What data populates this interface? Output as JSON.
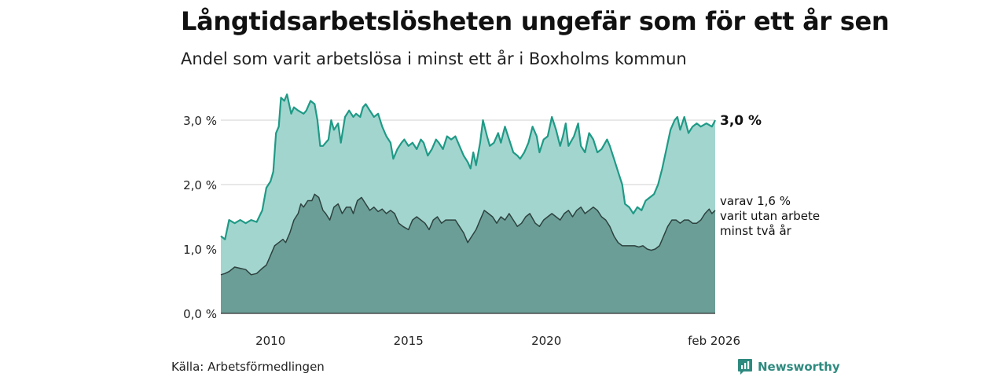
{
  "header": {
    "title": "Långtidsarbetslösheten ungefär som för ett år sen",
    "subtitle": "Andel som varit arbetslösa i minst ett år i Boxholms kommun"
  },
  "footer": {
    "source": "Källa: Arbetsförmedlingen",
    "brand": "Newsworthy"
  },
  "colors": {
    "total_fill": "#a3d5cf",
    "total_line": "#1f9a86",
    "long_fill": "#6b9e96",
    "long_line": "#2d423f",
    "grid": "#d2d2d2"
  },
  "chart_data": {
    "type": "area",
    "title": "Långtidsarbetslösheten ungefär som för ett år sen",
    "subtitle": "Andel som varit arbetslösa i minst ett år i Boxholms kommun",
    "xlabel": "",
    "ylabel": "",
    "xlim": [
      2008.2,
      2026.12
    ],
    "ylim": [
      0,
      3.5
    ],
    "grid": true,
    "x_tick_values": [
      2010,
      2015,
      2020,
      2026.08
    ],
    "x_tick_labels": [
      "2010",
      "2015",
      "2020",
      "feb 2026"
    ],
    "y_tick_values": [
      0,
      1,
      2,
      3
    ],
    "y_tick_labels": [
      "0,0 %",
      "1,0 %",
      "2,0 %",
      "3,0 %"
    ],
    "series": [
      {
        "name": "Andel arbetslösa minst ett år",
        "end_label": "3,0 %",
        "points": [
          [
            2008.2,
            1.2
          ],
          [
            2008.35,
            1.15
          ],
          [
            2008.5,
            1.45
          ],
          [
            2008.7,
            1.4
          ],
          [
            2008.9,
            1.45
          ],
          [
            2009.1,
            1.4
          ],
          [
            2009.3,
            1.45
          ],
          [
            2009.5,
            1.42
          ],
          [
            2009.7,
            1.6
          ],
          [
            2009.85,
            1.95
          ],
          [
            2010.0,
            2.05
          ],
          [
            2010.1,
            2.2
          ],
          [
            2010.2,
            2.8
          ],
          [
            2010.3,
            2.9
          ],
          [
            2010.38,
            3.35
          ],
          [
            2010.5,
            3.3
          ],
          [
            2010.6,
            3.4
          ],
          [
            2010.75,
            3.1
          ],
          [
            2010.85,
            3.2
          ],
          [
            2011.0,
            3.15
          ],
          [
            2011.2,
            3.1
          ],
          [
            2011.3,
            3.15
          ],
          [
            2011.45,
            3.3
          ],
          [
            2011.6,
            3.25
          ],
          [
            2011.7,
            3.0
          ],
          [
            2011.8,
            2.6
          ],
          [
            2011.9,
            2.6
          ],
          [
            2012.1,
            2.7
          ],
          [
            2012.2,
            3.0
          ],
          [
            2012.3,
            2.85
          ],
          [
            2012.45,
            2.95
          ],
          [
            2012.55,
            2.65
          ],
          [
            2012.7,
            3.05
          ],
          [
            2012.85,
            3.15
          ],
          [
            2013.0,
            3.05
          ],
          [
            2013.1,
            3.1
          ],
          [
            2013.25,
            3.05
          ],
          [
            2013.35,
            3.2
          ],
          [
            2013.45,
            3.25
          ],
          [
            2013.6,
            3.15
          ],
          [
            2013.75,
            3.05
          ],
          [
            2013.9,
            3.1
          ],
          [
            2014.05,
            2.9
          ],
          [
            2014.2,
            2.75
          ],
          [
            2014.35,
            2.65
          ],
          [
            2014.45,
            2.4
          ],
          [
            2014.6,
            2.55
          ],
          [
            2014.75,
            2.65
          ],
          [
            2014.85,
            2.7
          ],
          [
            2015.0,
            2.6
          ],
          [
            2015.15,
            2.65
          ],
          [
            2015.3,
            2.55
          ],
          [
            2015.45,
            2.7
          ],
          [
            2015.55,
            2.65
          ],
          [
            2015.7,
            2.45
          ],
          [
            2015.85,
            2.55
          ],
          [
            2016.0,
            2.7
          ],
          [
            2016.1,
            2.65
          ],
          [
            2016.25,
            2.55
          ],
          [
            2016.4,
            2.75
          ],
          [
            2016.55,
            2.7
          ],
          [
            2016.7,
            2.75
          ],
          [
            2016.85,
            2.6
          ],
          [
            2017.0,
            2.45
          ],
          [
            2017.15,
            2.35
          ],
          [
            2017.25,
            2.25
          ],
          [
            2017.35,
            2.5
          ],
          [
            2017.45,
            2.3
          ],
          [
            2017.6,
            2.65
          ],
          [
            2017.7,
            3.0
          ],
          [
            2017.85,
            2.75
          ],
          [
            2017.95,
            2.6
          ],
          [
            2018.1,
            2.65
          ],
          [
            2018.25,
            2.8
          ],
          [
            2018.35,
            2.65
          ],
          [
            2018.5,
            2.9
          ],
          [
            2018.65,
            2.7
          ],
          [
            2018.8,
            2.5
          ],
          [
            2018.95,
            2.45
          ],
          [
            2019.05,
            2.4
          ],
          [
            2019.2,
            2.5
          ],
          [
            2019.35,
            2.65
          ],
          [
            2019.5,
            2.9
          ],
          [
            2019.65,
            2.75
          ],
          [
            2019.75,
            2.5
          ],
          [
            2019.9,
            2.7
          ],
          [
            2020.05,
            2.75
          ],
          [
            2020.2,
            3.05
          ],
          [
            2020.35,
            2.85
          ],
          [
            2020.5,
            2.6
          ],
          [
            2020.6,
            2.75
          ],
          [
            2020.7,
            2.95
          ],
          [
            2020.8,
            2.6
          ],
          [
            2021.0,
            2.75
          ],
          [
            2021.15,
            2.95
          ],
          [
            2021.25,
            2.6
          ],
          [
            2021.4,
            2.5
          ],
          [
            2021.55,
            2.8
          ],
          [
            2021.7,
            2.7
          ],
          [
            2021.85,
            2.5
          ],
          [
            2022.0,
            2.55
          ],
          [
            2022.2,
            2.7
          ],
          [
            2022.3,
            2.6
          ],
          [
            2022.45,
            2.4
          ],
          [
            2022.6,
            2.2
          ],
          [
            2022.75,
            2.0
          ],
          [
            2022.85,
            1.7
          ],
          [
            2023.0,
            1.65
          ],
          [
            2023.15,
            1.55
          ],
          [
            2023.3,
            1.65
          ],
          [
            2023.45,
            1.6
          ],
          [
            2023.6,
            1.75
          ],
          [
            2023.75,
            1.8
          ],
          [
            2023.9,
            1.85
          ],
          [
            2024.05,
            2.0
          ],
          [
            2024.2,
            2.25
          ],
          [
            2024.35,
            2.55
          ],
          [
            2024.5,
            2.85
          ],
          [
            2024.65,
            3.0
          ],
          [
            2024.75,
            3.05
          ],
          [
            2024.85,
            2.85
          ],
          [
            2025.0,
            3.05
          ],
          [
            2025.15,
            2.8
          ],
          [
            2025.3,
            2.9
          ],
          [
            2025.45,
            2.95
          ],
          [
            2025.6,
            2.9
          ],
          [
            2025.8,
            2.95
          ],
          [
            2026.0,
            2.9
          ],
          [
            2026.12,
            3.0
          ]
        ]
      },
      {
        "name": "varav minst två år",
        "end_label_lines": [
          "varav 1,6 %",
          "varit utan arbete",
          "minst två år"
        ],
        "points": [
          [
            2008.2,
            0.6
          ],
          [
            2008.35,
            0.62
          ],
          [
            2008.5,
            0.65
          ],
          [
            2008.7,
            0.72
          ],
          [
            2008.9,
            0.7
          ],
          [
            2009.1,
            0.68
          ],
          [
            2009.3,
            0.6
          ],
          [
            2009.5,
            0.62
          ],
          [
            2009.7,
            0.7
          ],
          [
            2009.85,
            0.75
          ],
          [
            2010.0,
            0.9
          ],
          [
            2010.15,
            1.05
          ],
          [
            2010.3,
            1.1
          ],
          [
            2010.45,
            1.15
          ],
          [
            2010.55,
            1.1
          ],
          [
            2010.7,
            1.25
          ],
          [
            2010.85,
            1.45
          ],
          [
            2011.0,
            1.55
          ],
          [
            2011.1,
            1.7
          ],
          [
            2011.2,
            1.65
          ],
          [
            2011.35,
            1.75
          ],
          [
            2011.5,
            1.75
          ],
          [
            2011.6,
            1.85
          ],
          [
            2011.75,
            1.8
          ],
          [
            2011.9,
            1.6
          ],
          [
            2012.0,
            1.55
          ],
          [
            2012.15,
            1.45
          ],
          [
            2012.3,
            1.65
          ],
          [
            2012.45,
            1.7
          ],
          [
            2012.6,
            1.55
          ],
          [
            2012.75,
            1.65
          ],
          [
            2012.9,
            1.65
          ],
          [
            2013.0,
            1.55
          ],
          [
            2013.15,
            1.75
          ],
          [
            2013.3,
            1.8
          ],
          [
            2013.45,
            1.7
          ],
          [
            2013.6,
            1.6
          ],
          [
            2013.75,
            1.65
          ],
          [
            2013.9,
            1.58
          ],
          [
            2014.05,
            1.62
          ],
          [
            2014.2,
            1.55
          ],
          [
            2014.35,
            1.6
          ],
          [
            2014.5,
            1.55
          ],
          [
            2014.65,
            1.4
          ],
          [
            2014.8,
            1.35
          ],
          [
            2015.0,
            1.3
          ],
          [
            2015.15,
            1.45
          ],
          [
            2015.3,
            1.5
          ],
          [
            2015.45,
            1.45
          ],
          [
            2015.6,
            1.4
          ],
          [
            2015.75,
            1.3
          ],
          [
            2015.9,
            1.45
          ],
          [
            2016.05,
            1.5
          ],
          [
            2016.2,
            1.4
          ],
          [
            2016.35,
            1.45
          ],
          [
            2016.5,
            1.45
          ],
          [
            2016.7,
            1.45
          ],
          [
            2016.85,
            1.35
          ],
          [
            2017.0,
            1.25
          ],
          [
            2017.15,
            1.1
          ],
          [
            2017.3,
            1.2
          ],
          [
            2017.45,
            1.3
          ],
          [
            2017.6,
            1.45
          ],
          [
            2017.75,
            1.6
          ],
          [
            2017.9,
            1.55
          ],
          [
            2018.05,
            1.5
          ],
          [
            2018.2,
            1.4
          ],
          [
            2018.35,
            1.5
          ],
          [
            2018.5,
            1.45
          ],
          [
            2018.65,
            1.55
          ],
          [
            2018.8,
            1.45
          ],
          [
            2018.95,
            1.35
          ],
          [
            2019.1,
            1.4
          ],
          [
            2019.25,
            1.5
          ],
          [
            2019.4,
            1.55
          ],
          [
            2019.6,
            1.4
          ],
          [
            2019.75,
            1.35
          ],
          [
            2019.9,
            1.45
          ],
          [
            2020.05,
            1.5
          ],
          [
            2020.2,
            1.55
          ],
          [
            2020.35,
            1.5
          ],
          [
            2020.5,
            1.45
          ],
          [
            2020.65,
            1.55
          ],
          [
            2020.8,
            1.6
          ],
          [
            2020.95,
            1.5
          ],
          [
            2021.1,
            1.6
          ],
          [
            2021.25,
            1.65
          ],
          [
            2021.4,
            1.55
          ],
          [
            2021.55,
            1.6
          ],
          [
            2021.7,
            1.65
          ],
          [
            2021.85,
            1.6
          ],
          [
            2022.0,
            1.5
          ],
          [
            2022.15,
            1.45
          ],
          [
            2022.3,
            1.35
          ],
          [
            2022.45,
            1.2
          ],
          [
            2022.6,
            1.1
          ],
          [
            2022.75,
            1.05
          ],
          [
            2022.9,
            1.05
          ],
          [
            2023.05,
            1.05
          ],
          [
            2023.2,
            1.05
          ],
          [
            2023.35,
            1.03
          ],
          [
            2023.5,
            1.05
          ],
          [
            2023.65,
            1.0
          ],
          [
            2023.8,
            0.98
          ],
          [
            2023.95,
            1.0
          ],
          [
            2024.1,
            1.05
          ],
          [
            2024.25,
            1.2
          ],
          [
            2024.4,
            1.35
          ],
          [
            2024.55,
            1.45
          ],
          [
            2024.7,
            1.45
          ],
          [
            2024.85,
            1.4
          ],
          [
            2025.0,
            1.45
          ],
          [
            2025.15,
            1.45
          ],
          [
            2025.3,
            1.4
          ],
          [
            2025.45,
            1.4
          ],
          [
            2025.6,
            1.45
          ],
          [
            2025.75,
            1.55
          ],
          [
            2025.9,
            1.62
          ],
          [
            2026.0,
            1.55
          ],
          [
            2026.12,
            1.6
          ]
        ]
      }
    ]
  }
}
